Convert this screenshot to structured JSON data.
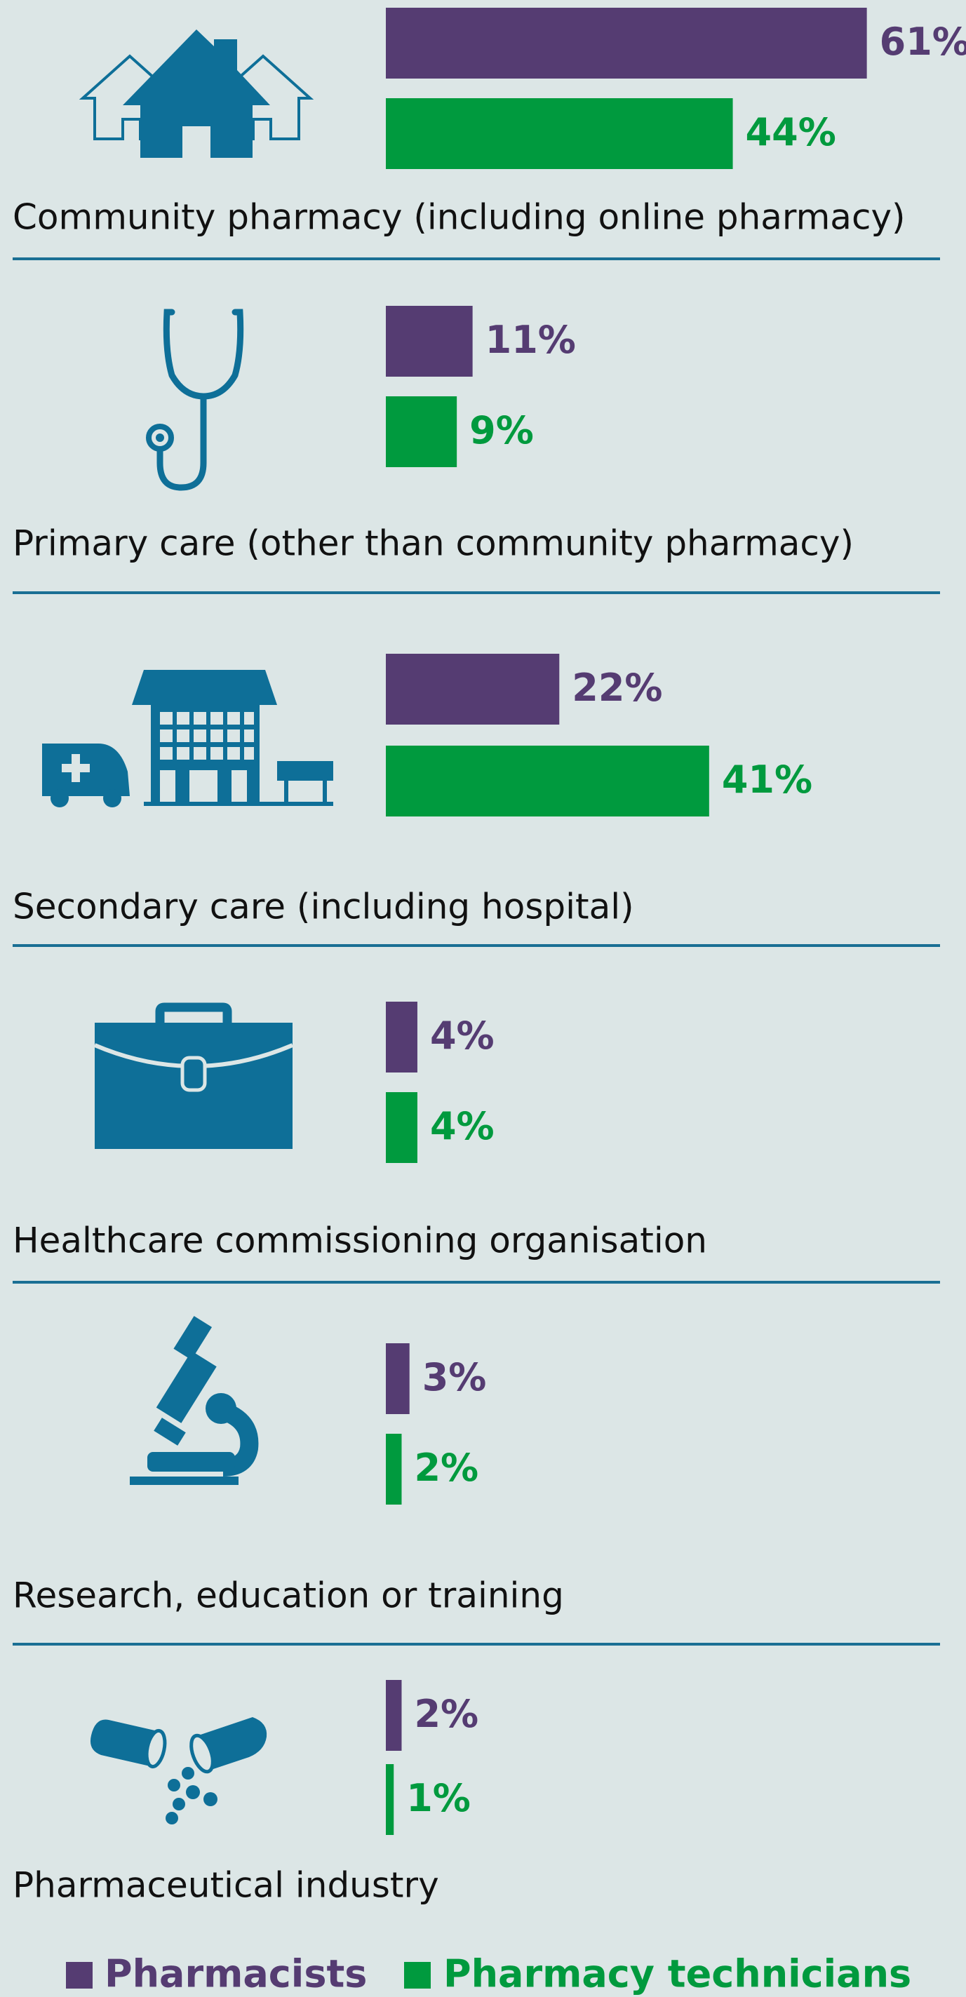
{
  "chart_data": {
    "type": "bar",
    "categories": [
      "Community pharmacy (including online pharmacy)",
      "Primary care (other than community pharmacy)",
      "Secondary care (including hospital)",
      "Healthcare commissioning organisation",
      "Research, education or training",
      "Pharmaceutical industry"
    ],
    "series": [
      {
        "name": "Pharmacists",
        "color": "#553c72",
        "values": [
          61,
          11,
          22,
          4,
          3,
          2
        ],
        "value_labels": [
          "61%",
          "11%",
          "22%",
          "4%",
          "3%",
          "2%"
        ]
      },
      {
        "name": "Pharmacy technicians",
        "color": "#009a3e",
        "values": [
          44,
          9,
          41,
          4,
          2,
          1
        ],
        "value_labels": [
          "44%",
          "9%",
          "41%",
          "4%",
          "2%",
          "1%"
        ]
      }
    ]
  }
}
